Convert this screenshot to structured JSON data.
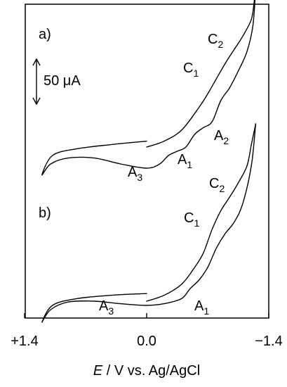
{
  "chart_data": {
    "type": "line",
    "xlabel_italic": "E",
    "xlabel_rest": " / V vs. Ag/AgCl",
    "xlim": [
      1.4,
      -1.4
    ],
    "x_ticks": [
      {
        "value": 1.4,
        "label": "+1.4"
      },
      {
        "value": 0.0,
        "label": "0.0"
      },
      {
        "value": -1.4,
        "label": "−1.4"
      }
    ],
    "scale_bar": {
      "label": "50 μA",
      "value_uA": 50
    },
    "panels": [
      {
        "label": "a)",
        "peaks": [
          {
            "main": "C",
            "sub": "2",
            "x": -0.95
          },
          {
            "main": "C",
            "sub": "1",
            "x": -0.7
          },
          {
            "main": "A",
            "sub": "2",
            "x": -1.0
          },
          {
            "main": "A",
            "sub": "1",
            "x": -0.45
          },
          {
            "main": "A",
            "sub": "3",
            "x": 0.2
          }
        ],
        "cathodic": {
          "x": [
            0.0,
            -0.2,
            -0.4,
            -0.6,
            -0.7,
            -0.8,
            -0.9,
            -1.0,
            -1.1,
            -1.2,
            -1.23,
            -1.25
          ],
          "y": [
            5,
            12,
            25,
            52,
            68,
            86,
            104,
            120,
            136,
            156,
            175,
            195
          ]
        },
        "anodic": {
          "x": [
            -1.25,
            -1.22,
            -1.15,
            -1.05,
            -0.95,
            -0.85,
            -0.75,
            -0.65,
            -0.55,
            -0.45,
            -0.35,
            -0.25,
            -0.15,
            0.0,
            0.3,
            0.6,
            0.9,
            1.1,
            1.2,
            1.08,
            0.8,
            0.4,
            0.0
          ],
          "y": [
            195,
            150,
            118,
            95,
            75,
            60,
            35,
            28,
            20,
            5,
            0,
            -5,
            -15,
            -20,
            -15,
            -8,
            -8,
            -15,
            -28,
            -5,
            3,
            8,
            12
          ]
        }
      },
      {
        "label": "b)",
        "peaks": [
          {
            "main": "C",
            "sub": "2",
            "x": -0.95
          },
          {
            "main": "C",
            "sub": "1",
            "x": -0.7
          },
          {
            "main": "A",
            "sub": "1",
            "x": -0.75
          },
          {
            "main": "A",
            "sub": "3",
            "x": 0.45
          }
        ],
        "cathodic": {
          "x": [
            0.0,
            -0.2,
            -0.4,
            -0.55,
            -0.65,
            -0.75,
            -0.85,
            -0.95,
            -1.05,
            -1.15,
            -1.2,
            -1.25
          ],
          "y": [
            5,
            12,
            25,
            45,
            62,
            90,
            112,
            128,
            145,
            165,
            190,
            215
          ]
        },
        "anodic": {
          "x": [
            -1.25,
            -1.2,
            -1.1,
            -1.0,
            -0.9,
            -0.8,
            -0.7,
            -0.6,
            -0.5,
            -0.4,
            -0.2,
            0.0,
            0.3,
            0.6,
            0.9,
            1.1,
            1.2,
            1.08,
            0.8,
            0.4,
            0.0
          ],
          "y": [
            215,
            165,
            120,
            98,
            85,
            68,
            45,
            30,
            20,
            8,
            2,
            0,
            2,
            5,
            4,
            -5,
            -20,
            0,
            8,
            12,
            14
          ]
        }
      }
    ]
  }
}
